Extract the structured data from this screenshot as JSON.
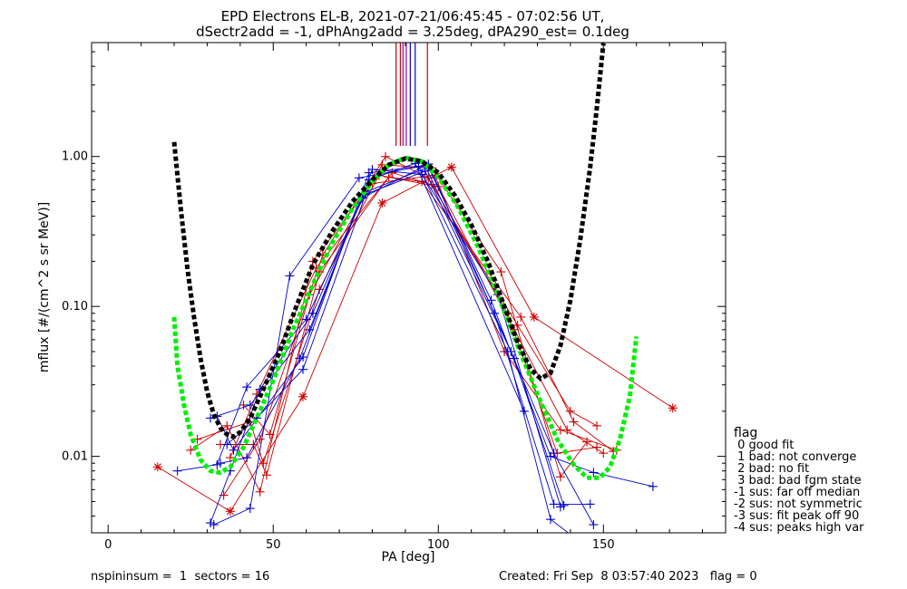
{
  "title_line1": "EPD Electrons EL-B, 2021-07-21/06:45:45 - 07:02:56 UT,",
  "title_line2": "dSectr2add = -1, dPhAng2add = 3.25deg, dPA290_est=   0.1deg",
  "footer_left": "nspininsum =  1  sectors = 16",
  "footer_right": "Created: Fri Sep  8 03:57:40 2023   flag = 0",
  "legend": {
    "title": "flag",
    "items": [
      " 0 good fit",
      " 1 bad: not converge",
      " 2 bad: no fit",
      " 3 bad: bad fgm state",
      "-1 sus: far off median",
      "-2 sus: not symmetric",
      "-3 sus: fit peak off 90",
      "-4 sus: peaks high var"
    ]
  },
  "colors": {
    "red": "#cc0000",
    "blue": "#0000cc",
    "black": "#000000",
    "green": "#00ee00",
    "purple": "#8800aa"
  },
  "chart_data": {
    "type": "line",
    "xlabel": "PA [deg]",
    "ylabel": "mflux [#/(cm^2 s sr MeV)]",
    "xlim": [
      -5,
      187
    ],
    "ylim_log10": [
      -2.51,
      0.76
    ],
    "xticks": [
      0,
      50,
      100,
      150
    ],
    "xtick_labels": [
      "0",
      "50",
      "100",
      "150"
    ],
    "yticks": [
      0.01,
      0.1,
      1.0
    ],
    "ytick_labels": [
      "0.01",
      "0.10",
      "1.00"
    ],
    "vertical_lines": [
      {
        "x": 87.2,
        "color": "red"
      },
      {
        "x": 88.5,
        "color": "red"
      },
      {
        "x": 89.3,
        "color": "purple"
      },
      {
        "x": 90.3,
        "color": "purple"
      },
      {
        "x": 91.5,
        "color": "blue"
      },
      {
        "x": 93.0,
        "color": "blue"
      },
      {
        "x": 96.7,
        "color": "red"
      }
    ],
    "series": [
      {
        "color": "red",
        "marker": "asterisk",
        "points": [
          [
            15,
            0.0085
          ],
          [
            37,
            0.0043
          ],
          [
            59,
            0.025
          ],
          [
            83,
            0.49
          ],
          [
            104,
            0.85
          ],
          [
            129,
            0.085
          ],
          [
            171,
            0.021
          ]
        ]
      },
      {
        "color": "red",
        "marker": "cross",
        "points": [
          [
            25,
            0.011
          ],
          [
            36,
            0.016
          ],
          [
            46,
            0.0058
          ],
          [
            62,
            0.2
          ],
          [
            80,
            0.66
          ],
          [
            99,
            0.75
          ],
          [
            120,
            0.05
          ],
          [
            137,
            0.015
          ],
          [
            154,
            0.011
          ]
        ]
      },
      {
        "color": "red",
        "marker": "cross",
        "points": [
          [
            27,
            0.013
          ],
          [
            43,
            0.017
          ],
          [
            47,
            0.009
          ],
          [
            64,
            0.13
          ],
          [
            82,
            0.75
          ],
          [
            100,
            0.63
          ],
          [
            123,
            0.07
          ],
          [
            139,
            0.015
          ],
          [
            150,
            0.0105
          ]
        ]
      },
      {
        "color": "red",
        "marker": "cross",
        "points": [
          [
            34,
            0.012
          ],
          [
            44,
            0.012
          ],
          [
            48,
            0.0075
          ],
          [
            64,
            0.17
          ],
          [
            85,
            0.73
          ],
          [
            95,
            0.68
          ],
          [
            125,
            0.085
          ],
          [
            141,
            0.017
          ],
          [
            153,
            0.0108
          ]
        ]
      },
      {
        "color": "red",
        "marker": "cross",
        "points": [
          [
            35,
            0.0055
          ],
          [
            46,
            0.013
          ],
          [
            65,
            0.22
          ],
          [
            84,
            1.0
          ],
          [
            97,
            0.72
          ],
          [
            121,
            0.09
          ],
          [
            136,
            0.0105
          ],
          [
            148,
            0.0115
          ]
        ]
      },
      {
        "color": "red",
        "marker": "cross",
        "points": [
          [
            37,
            0.0098
          ],
          [
            45,
            0.026
          ],
          [
            63,
            0.18
          ],
          [
            86,
            0.78
          ],
          [
            98,
            0.65
          ],
          [
            124,
            0.075
          ],
          [
            140,
            0.02
          ],
          [
            148,
            0.016
          ]
        ]
      },
      {
        "color": "red",
        "marker": "cross",
        "points": [
          [
            41,
            0.022
          ],
          [
            49,
            0.014
          ],
          [
            61,
            0.12
          ],
          [
            83,
            0.88
          ],
          [
            98,
            0.84
          ],
          [
            119,
            0.17
          ],
          [
            137,
            0.0073
          ],
          [
            145,
            0.0125
          ]
        ]
      },
      {
        "color": "blue",
        "marker": "cross",
        "points": [
          [
            21,
            0.008
          ],
          [
            33,
            0.0088
          ],
          [
            42,
            0.029
          ],
          [
            60,
            0.082
          ],
          [
            78,
            0.58
          ],
          [
            97,
            0.85
          ],
          [
            116,
            0.11
          ],
          [
            134,
            0.01
          ],
          [
            147,
            0.0078
          ],
          [
            165,
            0.0063
          ]
        ]
      },
      {
        "color": "blue",
        "marker": "cross",
        "points": [
          [
            32,
            0.0035
          ],
          [
            43,
            0.0045
          ],
          [
            55,
            0.16
          ],
          [
            76,
            0.72
          ],
          [
            96,
            0.87
          ],
          [
            117,
            0.09
          ],
          [
            135,
            0.0048
          ],
          [
            146,
            0.0048
          ]
        ]
      },
      {
        "color": "blue",
        "marker": "cross",
        "points": [
          [
            33,
            0.0185
          ],
          [
            38,
            0.011
          ],
          [
            59,
            0.046
          ],
          [
            79,
            0.78
          ],
          [
            94,
            0.86
          ],
          [
            121,
            0.05
          ],
          [
            134,
            0.0038
          ],
          [
            141,
            0.0029
          ]
        ]
      },
      {
        "color": "blue",
        "marker": "cross",
        "points": [
          [
            31,
            0.0036
          ],
          [
            37,
            0.008
          ],
          [
            46,
            0.028
          ],
          [
            62,
            0.09
          ],
          [
            77,
            0.53
          ],
          [
            97,
            0.89
          ],
          [
            122,
            0.05
          ],
          [
            135,
            0.0105
          ],
          [
            147,
            0.0035
          ]
        ]
      },
      {
        "color": "blue",
        "marker": "cross",
        "points": [
          [
            34,
            0.009
          ],
          [
            42,
            0.0098
          ],
          [
            58,
            0.045
          ],
          [
            80,
            0.82
          ],
          [
            95,
            0.76
          ],
          [
            118,
            0.12
          ],
          [
            137,
            0.0046
          ]
        ]
      },
      {
        "color": "blue",
        "marker": "cross",
        "points": [
          [
            36,
            0.012
          ],
          [
            45,
            0.018
          ],
          [
            59,
            0.038
          ],
          [
            78,
            0.56
          ],
          [
            96,
            0.8
          ],
          [
            123,
            0.045
          ],
          [
            138,
            0.0047
          ]
        ]
      },
      {
        "color": "blue",
        "marker": "cross",
        "points": [
          [
            31,
            0.018
          ],
          [
            43,
            0.022
          ],
          [
            61,
            0.07
          ],
          [
            79,
            0.7
          ],
          [
            93,
            0.9
          ],
          [
            126,
            0.02
          ]
        ]
      },
      {
        "color": "green",
        "style": "dashed",
        "marker": "none",
        "points": [
          [
            20,
            0.085
          ],
          [
            21,
            0.04
          ],
          [
            23,
            0.022
          ],
          [
            25,
            0.014
          ],
          [
            28,
            0.0095
          ],
          [
            31,
            0.008
          ],
          [
            34,
            0.0078
          ],
          [
            37,
            0.0085
          ],
          [
            41,
            0.0115
          ],
          [
            45,
            0.018
          ],
          [
            50,
            0.032
          ],
          [
            56,
            0.07
          ],
          [
            62,
            0.14
          ],
          [
            68,
            0.27
          ],
          [
            74,
            0.45
          ],
          [
            80,
            0.68
          ],
          [
            85,
            0.88
          ],
          [
            90,
            0.98
          ],
          [
            95,
            0.93
          ],
          [
            100,
            0.73
          ],
          [
            106,
            0.46
          ],
          [
            112,
            0.25
          ],
          [
            118,
            0.12
          ],
          [
            124,
            0.055
          ],
          [
            130,
            0.026
          ],
          [
            136,
            0.013
          ],
          [
            141,
            0.0088
          ],
          [
            145,
            0.0072
          ],
          [
            149,
            0.0072
          ],
          [
            152,
            0.0085
          ],
          [
            155,
            0.013
          ],
          [
            158,
            0.025
          ],
          [
            160,
            0.063
          ]
        ]
      },
      {
        "color": "black",
        "style": "dashed",
        "marker": "none",
        "points": [
          [
            20,
            1.25
          ],
          [
            22,
            0.45
          ],
          [
            24,
            0.18
          ],
          [
            26,
            0.085
          ],
          [
            28,
            0.045
          ],
          [
            30,
            0.027
          ],
          [
            32,
            0.019
          ],
          [
            34,
            0.0155
          ],
          [
            36,
            0.014
          ],
          [
            38,
            0.0135
          ],
          [
            40,
            0.0145
          ],
          [
            43,
            0.018
          ],
          [
            47,
            0.028
          ],
          [
            52,
            0.05
          ],
          [
            57,
            0.1
          ],
          [
            62,
            0.19
          ],
          [
            68,
            0.32
          ],
          [
            74,
            0.5
          ],
          [
            80,
            0.7
          ],
          [
            85,
            0.88
          ],
          [
            90,
            0.97
          ],
          [
            95,
            0.93
          ],
          [
            100,
            0.78
          ],
          [
            105,
            0.55
          ],
          [
            110,
            0.35
          ],
          [
            115,
            0.2
          ],
          [
            120,
            0.1
          ],
          [
            124,
            0.058
          ],
          [
            128,
            0.038
          ],
          [
            131,
            0.033
          ],
          [
            134,
            0.036
          ],
          [
            137,
            0.055
          ],
          [
            140,
            0.11
          ],
          [
            143,
            0.28
          ],
          [
            146,
            0.85
          ],
          [
            148,
            2.1
          ],
          [
            150,
            5.7
          ]
        ]
      }
    ]
  }
}
